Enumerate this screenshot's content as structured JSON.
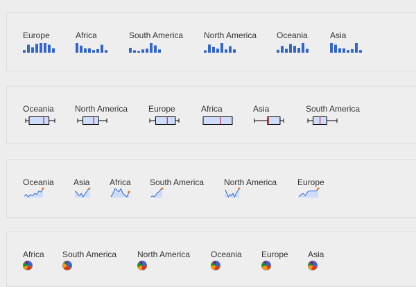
{
  "colors": {
    "bar": "#3366cc",
    "box_fill": "#ccddff",
    "box_stroke": "#000000",
    "median": "#cc0000",
    "line": "#3366cc",
    "line_fill": "#ccddff",
    "spot": "#ff6600",
    "pie": [
      "#3366cc",
      "#dc3912",
      "#ff9900",
      "#109618",
      "#990099"
    ]
  },
  "bar_row": [
    {
      "label": "Europe",
      "values": [
        3,
        9,
        6,
        10,
        11,
        11,
        9,
        5
      ]
    },
    {
      "label": "Africa",
      "values": [
        11,
        8,
        5,
        5,
        3,
        4,
        9,
        3
      ]
    },
    {
      "label": "South America",
      "values": [
        6,
        3,
        2,
        4,
        5,
        12,
        9,
        4
      ]
    },
    {
      "label": "North America",
      "values": [
        3,
        10,
        7,
        5,
        12,
        4,
        8,
        4
      ]
    },
    {
      "label": "Oceania",
      "values": [
        3,
        7,
        4,
        9,
        7,
        5,
        10,
        4
      ]
    },
    {
      "label": "Asia",
      "values": [
        11,
        9,
        5,
        5,
        3,
        4,
        11,
        3
      ]
    }
  ],
  "box_row": [
    {
      "label": "Oceania",
      "whisker_low": 0,
      "q1": 12,
      "median": 62,
      "q3": 80,
      "whisker_high": 100
    },
    {
      "label": "North America",
      "whisker_low": 0,
      "q1": 18,
      "median": 55,
      "q3": 72,
      "whisker_high": 100
    },
    {
      "label": "Europe",
      "whisker_low": 0,
      "q1": 20,
      "median": 60,
      "q3": 88,
      "whisker_high": 100
    },
    {
      "label": "Africa",
      "whisker_low": 0,
      "q1": 0,
      "median": 60,
      "q3": 100,
      "whisker_high": 100
    },
    {
      "label": "Asia",
      "whisker_low": 0,
      "q1": 45,
      "median": 48,
      "q3": 88,
      "whisker_high": 100
    },
    {
      "label": "South America",
      "whisker_low": 0,
      "q1": 18,
      "median": 42,
      "q3": 65,
      "whisker_high": 100
    }
  ],
  "line_row": [
    {
      "label": "Oceania",
      "values": [
        5,
        6,
        4,
        6,
        5,
        7,
        6,
        9,
        8,
        11
      ]
    },
    {
      "label": "Asia",
      "values": [
        8,
        7,
        5,
        4,
        6,
        3,
        5,
        7,
        9,
        10
      ]
    },
    {
      "label": "Africa",
      "values": [
        4,
        6,
        9,
        8,
        7,
        9,
        6,
        5,
        4,
        7
      ]
    },
    {
      "label": "South America",
      "values": [
        1,
        2,
        1,
        3,
        5,
        6,
        8,
        9
      ]
    },
    {
      "label": "North America",
      "values": [
        9,
        6,
        3,
        5,
        4,
        6,
        3,
        6,
        8,
        10
      ]
    },
    {
      "label": "Europe",
      "values": [
        1,
        3,
        4,
        2,
        5,
        6,
        6,
        6,
        6,
        8
      ]
    }
  ],
  "pie_row": [
    {
      "label": "Africa",
      "values": [
        30,
        25,
        15,
        20,
        10
      ]
    },
    {
      "label": "South America",
      "values": [
        35,
        30,
        20,
        10,
        5
      ]
    },
    {
      "label": "North America",
      "values": [
        25,
        25,
        20,
        20,
        10
      ]
    },
    {
      "label": "Oceania",
      "values": [
        30,
        25,
        20,
        15,
        10
      ]
    },
    {
      "label": "Europe",
      "values": [
        25,
        20,
        25,
        20,
        10
      ]
    },
    {
      "label": "Asia",
      "values": [
        30,
        25,
        20,
        15,
        10
      ]
    }
  ]
}
